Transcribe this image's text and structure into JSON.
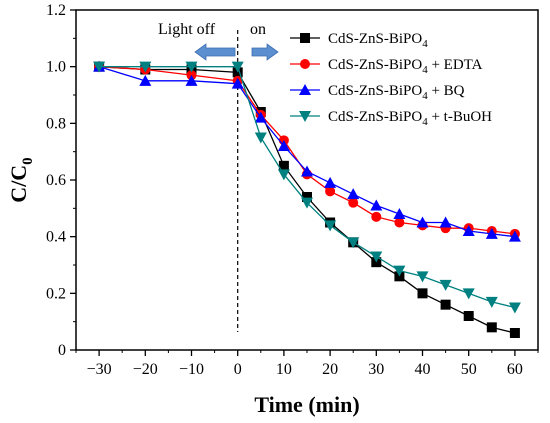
{
  "chart_data": {
    "type": "line",
    "xlabel": "Time (min)",
    "ylabel_main": "C/C",
    "ylabel_sub": "0",
    "xlim": [
      -35,
      65
    ],
    "ylim": [
      0,
      1.2
    ],
    "x_ticks": [
      -30,
      -20,
      -10,
      0,
      10,
      20,
      30,
      40,
      50,
      60
    ],
    "y_ticks": [
      0,
      0.2,
      0.4,
      0.6,
      0.8,
      1.0,
      1.2
    ],
    "y_tick_labels": [
      "0",
      "0.2",
      "0.4",
      "0.6",
      "0.8",
      "1.0",
      "1.2"
    ],
    "annotations": {
      "light_off": "Light off",
      "light_on": "on",
      "divider_x": 0
    },
    "legend_position": "top-right",
    "series": [
      {
        "name": "CdS-ZnS-BiPO4",
        "name_main": "CdS-ZnS-BiPO",
        "name_sub": "4",
        "name_suffix": "",
        "color": "#000000",
        "marker": "square",
        "x": [
          -30,
          -20,
          -10,
          0,
          5,
          10,
          15,
          20,
          25,
          30,
          35,
          40,
          45,
          50,
          55,
          60
        ],
        "y": [
          1.0,
          0.99,
          0.99,
          0.98,
          0.84,
          0.65,
          0.54,
          0.45,
          0.38,
          0.31,
          0.26,
          0.2,
          0.16,
          0.12,
          0.08,
          0.06
        ]
      },
      {
        "name": "CdS-ZnS-BiPO4 + EDTA",
        "name_main": "CdS-ZnS-BiPO",
        "name_sub": "4",
        "name_suffix": " + EDTA",
        "color": "#ff0000",
        "marker": "circle",
        "x": [
          -30,
          -20,
          -10,
          0,
          5,
          10,
          15,
          20,
          25,
          30,
          35,
          40,
          45,
          50,
          55,
          60
        ],
        "y": [
          1.0,
          0.99,
          0.97,
          0.95,
          0.83,
          0.74,
          0.62,
          0.56,
          0.52,
          0.47,
          0.45,
          0.44,
          0.43,
          0.43,
          0.42,
          0.41
        ]
      },
      {
        "name": "CdS-ZnS-BiPO4 + BQ",
        "name_main": "CdS-ZnS-BiPO",
        "name_sub": "4",
        "name_suffix": " + BQ",
        "color": "#0000ff",
        "marker": "triangle-up",
        "x": [
          -30,
          -20,
          -10,
          0,
          5,
          10,
          15,
          20,
          25,
          30,
          35,
          40,
          45,
          50,
          55,
          60
        ],
        "y": [
          1.0,
          0.95,
          0.95,
          0.94,
          0.82,
          0.72,
          0.63,
          0.59,
          0.55,
          0.51,
          0.48,
          0.45,
          0.45,
          0.42,
          0.41,
          0.4
        ]
      },
      {
        "name": "CdS-ZnS-BiPO4 + t-BuOH",
        "name_main": "CdS-ZnS-BiPO",
        "name_sub": "4",
        "name_suffix": " + t-BuOH",
        "color": "#008080",
        "marker": "triangle-down",
        "x": [
          -30,
          -20,
          -10,
          0,
          5,
          10,
          15,
          20,
          25,
          30,
          35,
          40,
          45,
          50,
          55,
          60
        ],
        "y": [
          1.0,
          1.0,
          1.0,
          1.0,
          0.75,
          0.62,
          0.52,
          0.44,
          0.38,
          0.33,
          0.28,
          0.26,
          0.23,
          0.2,
          0.17,
          0.15
        ]
      }
    ]
  }
}
